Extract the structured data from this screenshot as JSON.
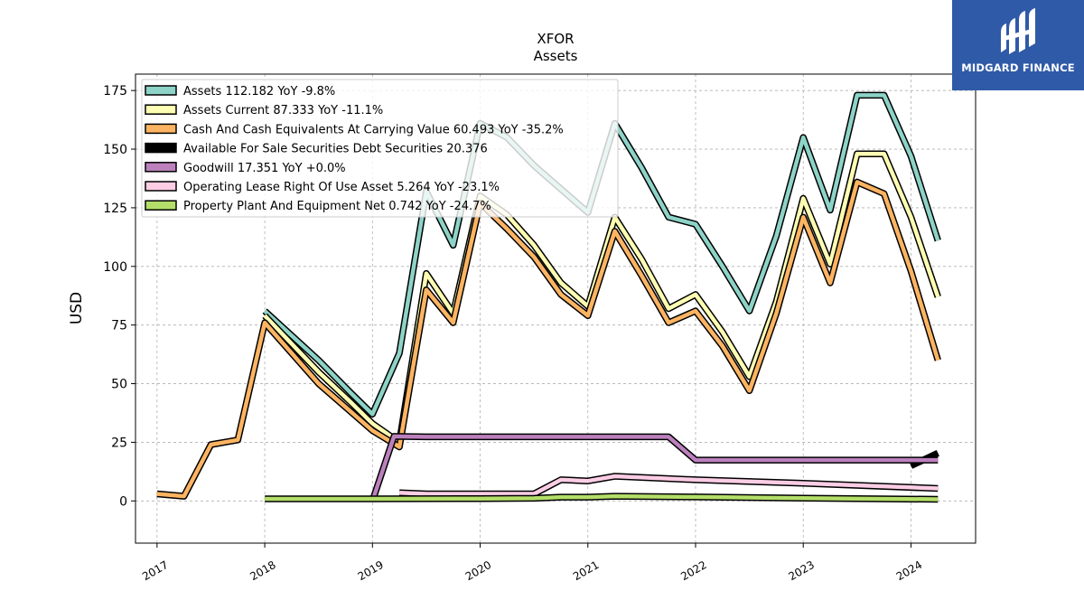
{
  "chart_data": {
    "type": "line",
    "title": "XFOR",
    "subtitle": "Assets",
    "ylabel": "USD",
    "xlabel": "",
    "xlim": [
      2016.8,
      2024.6
    ],
    "ylim": [
      -18,
      182
    ],
    "yticks": [
      0,
      25,
      50,
      75,
      100,
      125,
      150,
      175
    ],
    "xticks": [
      2017,
      2018,
      2019,
      2020,
      2021,
      2022,
      2023,
      2024
    ],
    "xtick_labels": [
      "2017",
      "2018",
      "2019",
      "2020",
      "2021",
      "2022",
      "2023",
      "2024"
    ],
    "grid": true,
    "legend_position": "top-left",
    "series": [
      {
        "name": "Assets",
        "legend": "Assets  112.182 YoY -9.8%",
        "color": "#8dd3c7",
        "points": [
          [
            2018.0,
            81
          ],
          [
            2018.5,
            60
          ],
          [
            2018.8,
            46
          ],
          [
            2019.0,
            37
          ],
          [
            2019.25,
            63
          ],
          [
            2019.5,
            132
          ],
          [
            2019.75,
            109
          ],
          [
            2020.0,
            161
          ],
          [
            2020.25,
            155
          ],
          [
            2020.5,
            143
          ],
          [
            2020.75,
            133
          ],
          [
            2021.0,
            123
          ],
          [
            2021.25,
            161
          ],
          [
            2021.5,
            142
          ],
          [
            2021.75,
            121
          ],
          [
            2022.0,
            118
          ],
          [
            2022.25,
            100
          ],
          [
            2022.5,
            81
          ],
          [
            2022.75,
            113
          ],
          [
            2023.0,
            155
          ],
          [
            2023.25,
            124
          ],
          [
            2023.5,
            173
          ],
          [
            2023.75,
            173
          ],
          [
            2024.0,
            147
          ],
          [
            2024.25,
            111
          ]
        ]
      },
      {
        "name": "Assets Current",
        "legend": "Assets Current  87.333 YoY -11.1%",
        "color": "#ffffb3",
        "points": [
          [
            2018.0,
            79
          ],
          [
            2018.5,
            55
          ],
          [
            2018.8,
            42
          ],
          [
            2019.0,
            33
          ],
          [
            2019.25,
            25
          ],
          [
            2019.5,
            97
          ],
          [
            2019.75,
            80
          ],
          [
            2020.0,
            130
          ],
          [
            2020.25,
            122
          ],
          [
            2020.5,
            109
          ],
          [
            2020.75,
            93
          ],
          [
            2021.0,
            83
          ],
          [
            2021.25,
            121
          ],
          [
            2021.5,
            103
          ],
          [
            2021.75,
            82
          ],
          [
            2022.0,
            88
          ],
          [
            2022.25,
            72
          ],
          [
            2022.5,
            53
          ],
          [
            2022.75,
            85
          ],
          [
            2023.0,
            129
          ],
          [
            2023.25,
            101
          ],
          [
            2023.5,
            148
          ],
          [
            2023.75,
            148
          ],
          [
            2024.0,
            121
          ],
          [
            2024.25,
            87
          ]
        ]
      },
      {
        "name": "Cash And Cash Equivalents At Carrying Value",
        "legend": "Cash And Cash Equivalents At Carrying Value  60.493 YoY -35.2%",
        "color": "#fdb462",
        "points": [
          [
            2017.0,
            3
          ],
          [
            2017.25,
            2
          ],
          [
            2017.5,
            24
          ],
          [
            2017.75,
            26
          ],
          [
            2018.0,
            76
          ],
          [
            2018.5,
            50
          ],
          [
            2018.8,
            38
          ],
          [
            2019.0,
            30
          ],
          [
            2019.25,
            23
          ],
          [
            2019.5,
            90
          ],
          [
            2019.75,
            76
          ],
          [
            2020.0,
            127
          ],
          [
            2020.25,
            116
          ],
          [
            2020.5,
            104
          ],
          [
            2020.75,
            88
          ],
          [
            2021.0,
            79
          ],
          [
            2021.25,
            115
          ],
          [
            2021.5,
            96
          ],
          [
            2021.75,
            76
          ],
          [
            2022.0,
            81
          ],
          [
            2022.25,
            66
          ],
          [
            2022.5,
            47
          ],
          [
            2022.75,
            80
          ],
          [
            2023.0,
            121
          ],
          [
            2023.25,
            93
          ],
          [
            2023.5,
            136
          ],
          [
            2023.75,
            131
          ],
          [
            2024.0,
            98
          ],
          [
            2024.25,
            60
          ]
        ]
      },
      {
        "name": "Available For Sale Securities Debt Securities",
        "legend": "Available For Sale Securities Debt Securities  20.376",
        "color": "#000000",
        "points": [
          [
            2024.0,
            15
          ],
          [
            2024.25,
            20.4
          ]
        ]
      },
      {
        "name": "Goodwill",
        "legend": "Goodwill  17.351 YoY +0.0%",
        "color": "#bc80bd",
        "points": [
          [
            2019.0,
            0
          ],
          [
            2019.2,
            27.5
          ],
          [
            2019.5,
            27.3
          ],
          [
            2021.75,
            27.3
          ],
          [
            2022.0,
            17.4
          ],
          [
            2024.25,
            17.4
          ]
        ]
      },
      {
        "name": "Operating Lease Right Of Use Asset",
        "legend": "Operating Lease Right Of Use Asset  5.264 YoY -23.1%",
        "color": "#fccde5",
        "points": [
          [
            2019.25,
            3.5
          ],
          [
            2019.5,
            3
          ],
          [
            2020.5,
            3
          ],
          [
            2020.75,
            9
          ],
          [
            2021.0,
            8.5
          ],
          [
            2021.25,
            10.5
          ],
          [
            2022.0,
            9
          ],
          [
            2023.0,
            7.5
          ],
          [
            2024.25,
            5.3
          ]
        ]
      },
      {
        "name": "Property Plant And Equipment Net",
        "legend": "Property Plant And Equipment Net  0.742 YoY -24.7%",
        "color": "#b3de69",
        "points": [
          [
            2018.0,
            0.9
          ],
          [
            2019.0,
            0.9
          ],
          [
            2020.0,
            1.0
          ],
          [
            2020.5,
            1.1
          ],
          [
            2020.75,
            1.6
          ],
          [
            2021.0,
            1.6
          ],
          [
            2021.25,
            2.0
          ],
          [
            2022.0,
            1.7
          ],
          [
            2023.0,
            1.2
          ],
          [
            2024.25,
            0.7
          ]
        ]
      }
    ]
  },
  "logo": {
    "text": "MIDGARD FINANCE",
    "background": "#2f5aa8"
  }
}
